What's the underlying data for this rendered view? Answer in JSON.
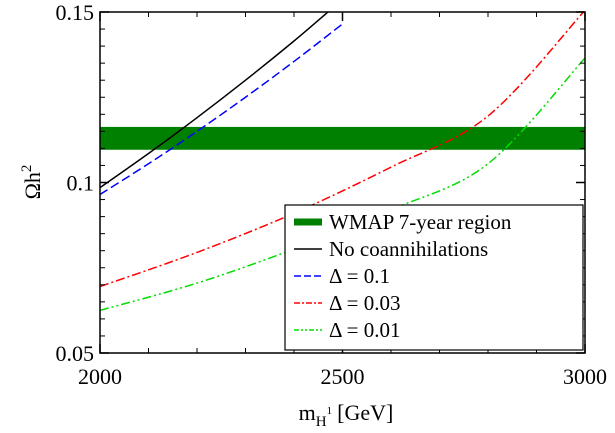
{
  "chart_data": {
    "type": "line",
    "xlabel": "m",
    "xlabel_sub": "H",
    "xlabel_sup": "1",
    "xlabel_unit": "[GeV]",
    "ylabel": "Ωh",
    "ylabel_sup": "2",
    "xlim": [
      2000,
      3000
    ],
    "ylim": [
      0.05,
      0.15
    ],
    "x_ticks": [
      2000,
      2500,
      3000
    ],
    "x_tick_labels": [
      "2000",
      "2500",
      "3000"
    ],
    "y_ticks": [
      0.05,
      0.1,
      0.15
    ],
    "y_tick_labels": [
      "0.05",
      "0.1",
      "0.15"
    ],
    "grid": false,
    "legend_position": "bottom-right",
    "band": {
      "name": "WMAP 7-year region",
      "y_range": [
        0.1096,
        0.1163
      ],
      "color": "#008000"
    },
    "series": [
      {
        "name": "No coannihilations",
        "color": "#000000",
        "dash": "solid",
        "x": [
          2000,
          2100,
          2200,
          2300,
          2400,
          2470
        ],
        "y": [
          0.0985,
          0.1085,
          0.119,
          0.13,
          0.1415,
          0.15
        ]
      },
      {
        "name": "Δ = 0.1",
        "color": "#0000ff",
        "dash": "dash",
        "x": [
          2000,
          2100,
          2200,
          2300,
          2400,
          2500
        ],
        "y": [
          0.0965,
          0.1055,
          0.115,
          0.125,
          0.1355,
          0.1465
        ]
      },
      {
        "name": "Δ = 0.03",
        "color": "#ff0000",
        "dash": "dashdot",
        "x": [
          2000,
          2200,
          2400,
          2600,
          2800,
          3000
        ],
        "y": [
          0.0695,
          0.0795,
          0.091,
          0.1045,
          0.1195,
          0.1505
        ]
      },
      {
        "name": "Δ = 0.01",
        "color": "#00dd00",
        "dash": "dashdotdot",
        "x": [
          2000,
          2200,
          2400,
          2600,
          2800,
          3000
        ],
        "y": [
          0.0625,
          0.0705,
          0.0805,
          0.092,
          0.1055,
          0.1365
        ]
      }
    ]
  }
}
